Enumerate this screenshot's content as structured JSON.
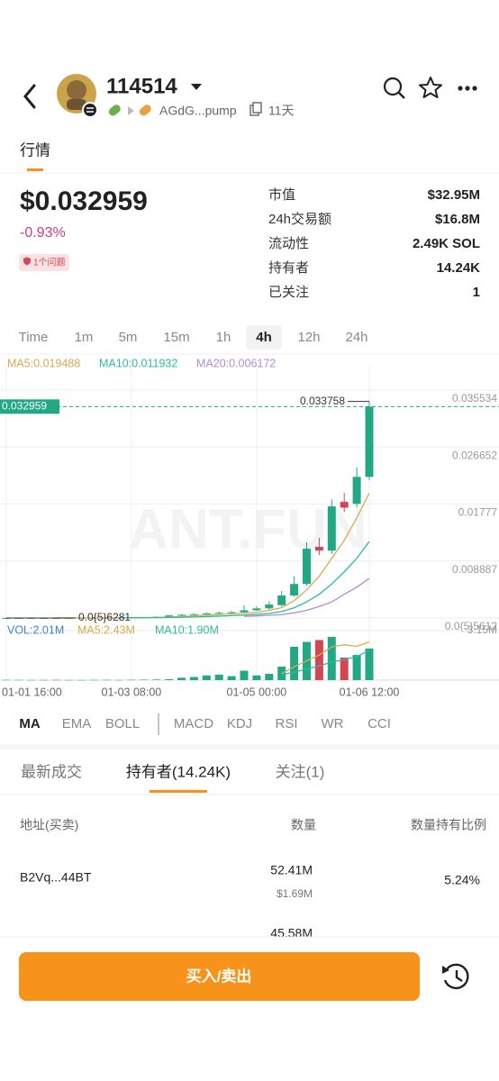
{
  "header": {
    "title": "114514",
    "address": "AGdG...pump",
    "age": "11天"
  },
  "tabs": [
    "行情"
  ],
  "price": "$0.032959",
  "change": "-0.93%",
  "badge": "1个问题",
  "stats": [
    {
      "label": "市值",
      "value": "$32.95M"
    },
    {
      "label": "24h交易额",
      "value": "$16.8M"
    },
    {
      "label": "流动性",
      "value": "2.49K SOL"
    },
    {
      "label": "持有者",
      "value": "14.24K"
    },
    {
      "label": "已关注",
      "value": "1"
    }
  ],
  "intervals": [
    "Time",
    "1m",
    "5m",
    "15m",
    "1h",
    "4h",
    "12h",
    "24h"
  ],
  "active_interval": 5,
  "kline": {
    "watermark": "ANT.FUN",
    "ma_labels": [
      "MA5:0.019488",
      "MA10:0.011932",
      "MA20:0.006172"
    ],
    "ma_colors": [
      "#d9a94e",
      "#2bbd9b",
      "#b08cd8"
    ],
    "vol_labels": [
      "VOL:2.01M",
      "MA5:2.43M",
      "MA10:1.90M"
    ],
    "vol_label_colors": [
      "#3a86c8",
      "#d9a94e",
      "#2bbd9b"
    ],
    "up_color": "#22a884",
    "down_color": "#d64553",
    "categories": [
      "01-01 16:00",
      null,
      null,
      null,
      null,
      null,
      null,
      null,
      null,
      null,
      "01-03 08:00",
      null,
      null,
      null,
      null,
      null,
      null,
      null,
      null,
      null,
      "01-05 00:00",
      null,
      null,
      null,
      null,
      null,
      null,
      null,
      null,
      "01-06 12:00"
    ],
    "open": [
      8e-06,
      9e-06,
      9e-06,
      1.1e-05,
      1.4e-05,
      1.3e-05,
      1.8e-05,
      2.4e-05,
      3e-05,
      4e-05,
      5e-05,
      8e-05,
      0.00012,
      0.0002,
      0.0004,
      0.0005,
      0.0006,
      0.0007,
      0.0008,
      0.0009,
      0.0012,
      0.0015,
      0.002,
      0.0035,
      0.0053,
      0.0111,
      0.0105,
      0.0181,
      0.0178,
      0.022
    ],
    "close": [
      9e-06,
      9e-06,
      1.1e-05,
      1.4e-05,
      1.3e-05,
      1.8e-05,
      2.4e-05,
      3e-05,
      4e-05,
      5e-05,
      8e-05,
      0.00012,
      0.0002,
      0.0004,
      0.0005,
      0.0006,
      0.0007,
      0.0008,
      0.0009,
      0.0012,
      0.0015,
      0.0021,
      0.0035,
      0.0053,
      0.0108,
      0.0105,
      0.0174,
      0.0172,
      0.022,
      0.032959
    ],
    "high": [
      1e-05,
      1e-05,
      1.2e-05,
      1.5e-05,
      1.6e-05,
      2e-05,
      2.6e-05,
      3.4e-05,
      4.5e-05,
      6e-05,
      9e-05,
      0.00014,
      0.00024,
      0.00045,
      0.0006,
      0.0007,
      0.0009,
      0.001,
      0.0011,
      0.002,
      0.0018,
      0.0026,
      0.0042,
      0.0065,
      0.0118,
      0.0125,
      0.0185,
      0.0195,
      0.0235,
      0.033758
    ],
    "low": [
      6.281e-06,
      8e-06,
      8e-06,
      1e-05,
      1.2e-05,
      1.2e-05,
      1.7e-05,
      2.2e-05,
      2.8e-05,
      3.8e-05,
      4.8e-05,
      7.5e-05,
      0.00011,
      0.00019,
      0.0003,
      0.0004,
      0.0005,
      0.0006,
      0.0007,
      0.0008,
      0.0011,
      0.0013,
      0.0018,
      0.0033,
      0.005,
      0.0098,
      0.01,
      0.0165,
      0.0172,
      0.0215
    ],
    "ma5": [
      null,
      null,
      null,
      null,
      1.1e-05,
      1.3e-05,
      1.6e-05,
      1.9e-05,
      2.5e-05,
      3.2e-05,
      4.5e-05,
      6.4e-05,
      9.4e-05,
      0.00014,
      0.00023,
      0.00034,
      0.00045,
      0.00055,
      0.00065,
      0.00076,
      0.00088,
      0.0012,
      0.0016,
      0.0027,
      0.0044,
      0.0065,
      0.0093,
      0.0121,
      0.0156,
      0.019488
    ],
    "ma10": [
      null,
      null,
      null,
      null,
      null,
      null,
      null,
      null,
      null,
      2.2e-05,
      2.9e-05,
      4e-05,
      5.5e-05,
      7.7e-05,
      0.00011,
      0.00016,
      0.00022,
      0.00029,
      0.00037,
      0.00045,
      0.00056,
      0.0007,
      0.001,
      0.0016,
      0.0025,
      0.0037,
      0.0053,
      0.0072,
      0.0093,
      0.011932
    ],
    "ma20": [
      null,
      null,
      null,
      null,
      null,
      null,
      null,
      null,
      null,
      null,
      null,
      null,
      null,
      null,
      null,
      null,
      null,
      null,
      null,
      0.00025,
      0.00033,
      0.00042,
      0.00053,
      0.0008,
      0.0012,
      0.0018,
      0.0025,
      0.0037,
      0.0048,
      0.006172
    ],
    "ylim": [
      -0.00056,
      0.03947
    ],
    "yticks": [
      0.035534,
      0.026652,
      0.01777,
      0.008887,
      {
        "value": 5.612e-06,
        "label": "0.0{5}5612"
      }
    ],
    "last_price": 0.032959,
    "high_tag": 0.033758,
    "low_tag": {
      "value": 6.281e-06,
      "label": "0.0{5}6281"
    },
    "volume": [
      20000,
      15000,
      10000,
      12000,
      18000,
      10000,
      8000,
      15000,
      20000,
      12000,
      25000,
      30000,
      40000,
      60000,
      150000,
      200000,
      300000,
      350000,
      250000,
      600000,
      300000,
      400000,
      860000,
      2120000,
      2430000,
      2550000,
      2750000,
      1430000,
      1600000,
      2010000
    ],
    "vol_ma5": [
      null,
      null,
      null,
      null,
      null,
      null,
      null,
      null,
      null,
      null,
      null,
      null,
      null,
      null,
      null,
      null,
      null,
      null,
      null,
      null,
      null,
      null,
      420000,
      850000,
      1230000,
      1600000,
      2110000,
      2250000,
      2150000,
      2430000
    ],
    "vol_ma10": [
      null,
      null,
      null,
      null,
      null,
      null,
      null,
      null,
      null,
      null,
      null,
      null,
      null,
      null,
      null,
      null,
      null,
      null,
      null,
      null,
      null,
      null,
      350000,
      500000,
      700000,
      900000,
      1150000,
      1300000,
      1500000,
      1900000
    ],
    "vol_ylim": [
      0,
      3150000
    ],
    "vol_yticks": [
      {
        "value": 3150000,
        "label": "3.15M"
      }
    ]
  },
  "indicators": [
    "MA",
    "EMA",
    "BOLL",
    "MACD",
    "KDJ",
    "RSI",
    "WR",
    "CCI"
  ],
  "active_indicator": 0,
  "list_tabs": [
    "最新成交",
    "持有者(14.24K)",
    "关注(1)"
  ],
  "active_list_tab": 1,
  "table": {
    "headers": [
      "地址(买卖)",
      "数量",
      "数量持有比例"
    ],
    "rows": [
      {
        "address": "B2Vq...44BT",
        "amount": "52.41M",
        "usd": "$1.69M",
        "pct": "5.24%"
      },
      {
        "amount": "45.58M"
      }
    ]
  },
  "button": "买入/卖出"
}
